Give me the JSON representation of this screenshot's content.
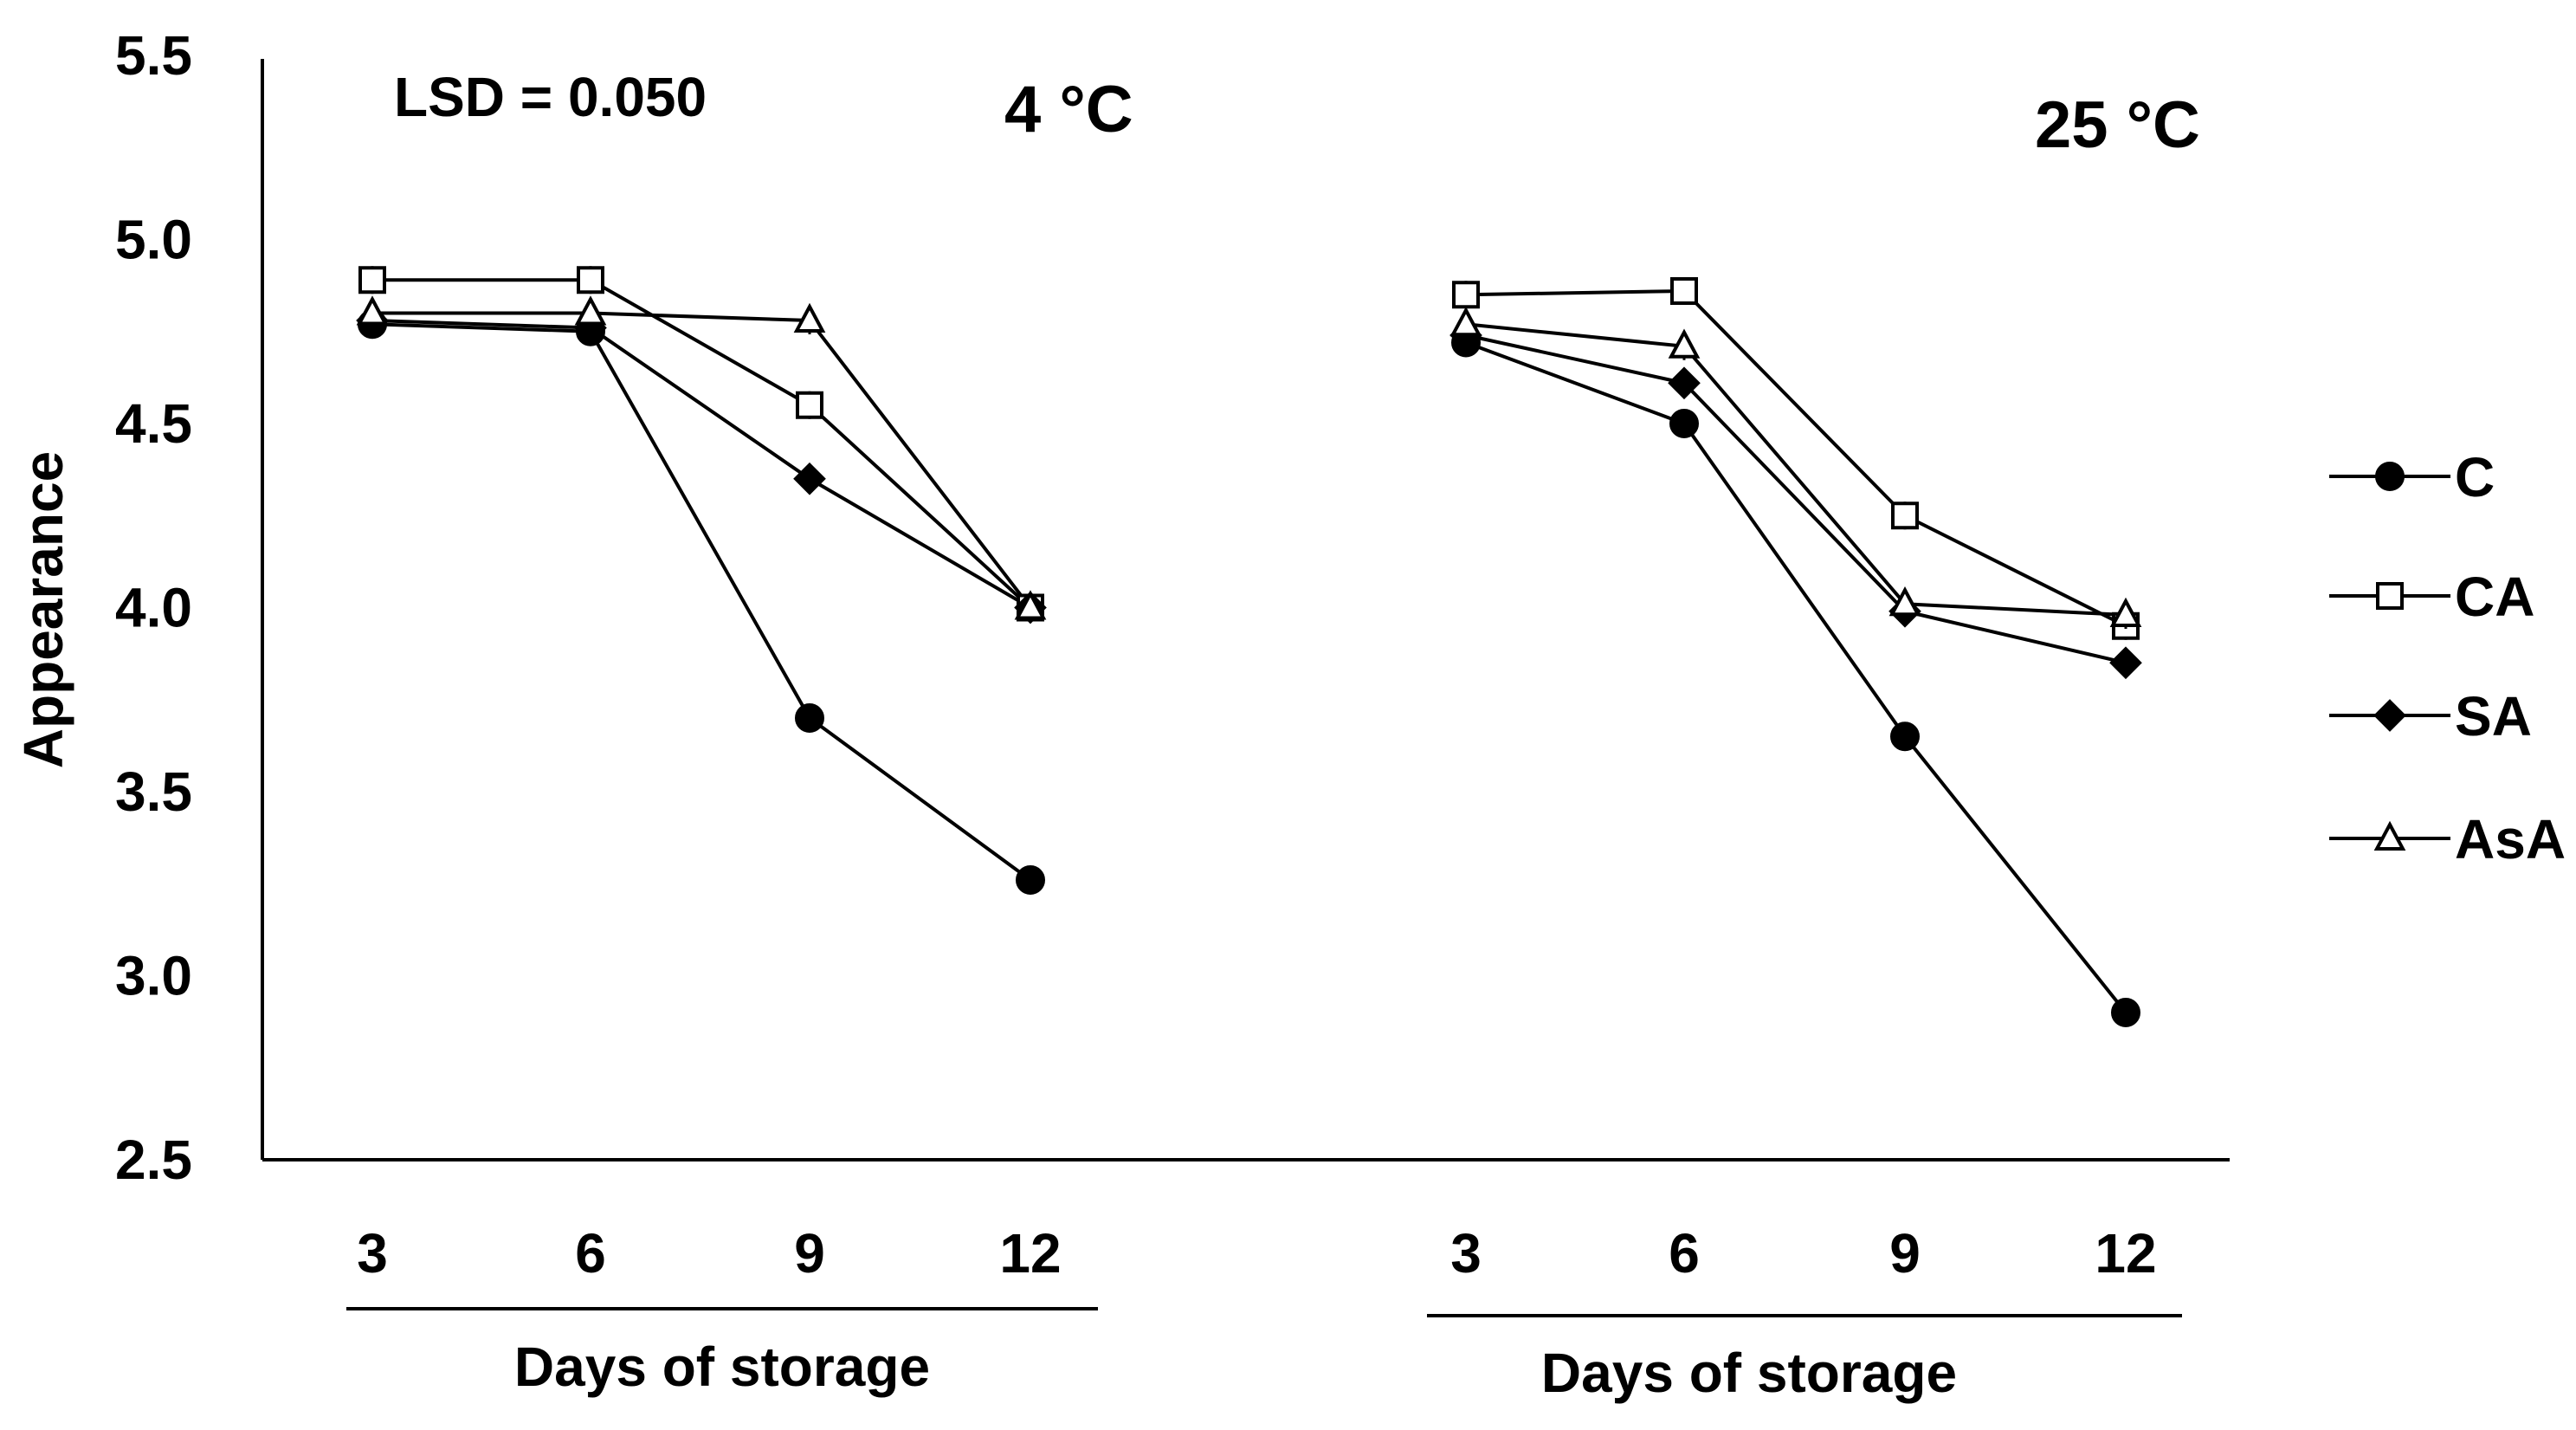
{
  "chart_data": {
    "type": "line",
    "ylabel": "Appearance",
    "ylim": [
      2.5,
      5.5
    ],
    "yticks": [
      "2.5",
      "3.0",
      "3.5",
      "4.0",
      "4.5",
      "5.0",
      "5.5"
    ],
    "annotation": "LSD = 0.050",
    "legend_position": "right",
    "series_names": [
      "C",
      "CA",
      "SA",
      "AsA"
    ],
    "panels": [
      {
        "title": "4 °C",
        "xlabel": "Days of storage",
        "categories": [
          "3",
          "6",
          "9",
          "12"
        ],
        "series": [
          {
            "name": "C",
            "values": [
              4.77,
              4.75,
              3.7,
              3.26
            ]
          },
          {
            "name": "CA",
            "values": [
              4.89,
              4.89,
              4.55,
              4.0
            ]
          },
          {
            "name": "SA",
            "values": [
              4.78,
              4.76,
              4.35,
              4.0
            ]
          },
          {
            "name": "AsA",
            "values": [
              4.8,
              4.8,
              4.78,
              4.0
            ]
          }
        ]
      },
      {
        "title": "25 °C",
        "xlabel": "Days of storage",
        "categories": [
          "3",
          "6",
          "9",
          "12"
        ],
        "series": [
          {
            "name": "C",
            "values": [
              4.72,
              4.5,
              3.65,
              2.9
            ]
          },
          {
            "name": "CA",
            "values": [
              4.85,
              4.86,
              4.25,
              3.95
            ]
          },
          {
            "name": "SA",
            "values": [
              4.74,
              4.61,
              3.99,
              3.85
            ]
          },
          {
            "name": "AsA",
            "values": [
              4.77,
              4.71,
              4.01,
              3.98
            ]
          }
        ]
      }
    ]
  }
}
